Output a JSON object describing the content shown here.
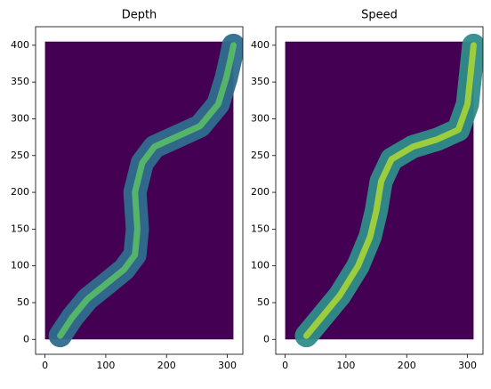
{
  "chart_data": [
    {
      "type": "heatmap",
      "title": "Depth",
      "extent": [
        0,
        310,
        0,
        405
      ],
      "background": "#440154",
      "channel_color": "#2f6d8e",
      "core_color": "#5ec962",
      "x": [
        25,
        45,
        70,
        100,
        130,
        148,
        152,
        148,
        160,
        180,
        215,
        255,
        285,
        298,
        305,
        310
      ],
      "y": [
        5,
        30,
        55,
        75,
        95,
        115,
        150,
        200,
        240,
        262,
        275,
        290,
        320,
        355,
        380,
        400
      ],
      "xlim": [
        -15.5,
        325.5
      ],
      "ylim": [
        -20.25,
        425.25
      ],
      "xticks": [
        0,
        100,
        200,
        300
      ],
      "yticks": [
        0,
        50,
        100,
        150,
        200,
        250,
        300,
        350,
        400
      ]
    },
    {
      "type": "heatmap",
      "title": "Speed",
      "extent": [
        0,
        310,
        0,
        405
      ],
      "background": "#440154",
      "channel_color": "#2f8d8a",
      "core_color": "#b8de29",
      "x": [
        35,
        60,
        90,
        120,
        140,
        150,
        158,
        175,
        210,
        250,
        285,
        300,
        305,
        310
      ],
      "y": [
        5,
        30,
        60,
        100,
        140,
        175,
        215,
        245,
        262,
        272,
        285,
        320,
        360,
        400
      ],
      "xlim": [
        -15.5,
        325.5
      ],
      "ylim": [
        -20.25,
        425.25
      ],
      "xticks": [
        0,
        100,
        200,
        300
      ],
      "yticks": [
        0,
        50,
        100,
        150,
        200,
        250,
        300,
        350,
        400
      ]
    }
  ]
}
